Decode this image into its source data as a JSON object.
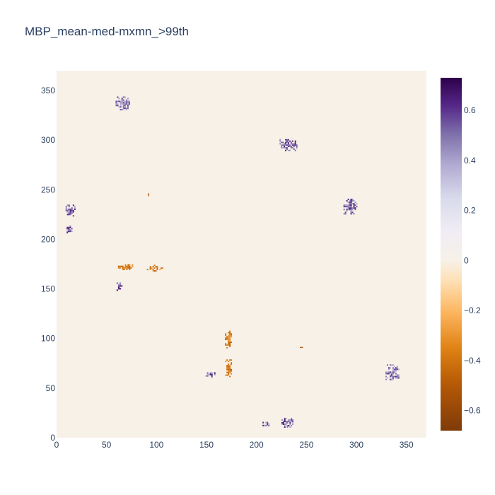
{
  "chart_data": {
    "type": "heatmap",
    "title": "MBP_mean-med-mxmn_>99th",
    "xlabel": "",
    "ylabel": "",
    "xlim": [
      0,
      370
    ],
    "ylim": [
      0,
      370
    ],
    "x_ticks": [
      0,
      50,
      100,
      150,
      200,
      250,
      300,
      350
    ],
    "y_ticks": [
      0,
      50,
      100,
      150,
      200,
      250,
      300,
      350
    ],
    "colorbar": {
      "range": [
        -0.68,
        0.73
      ],
      "ticks": [
        -0.6,
        -0.4,
        -0.2,
        0,
        0.2,
        0.4,
        0.6
      ],
      "colorscale": [
        [
          -0.68,
          "#7f3b08"
        ],
        [
          -0.5,
          "#b35806"
        ],
        [
          -0.35,
          "#e08214"
        ],
        [
          -0.2,
          "#fdb863"
        ],
        [
          -0.08,
          "#fee0b6"
        ],
        [
          0,
          "#f7f1e8"
        ],
        [
          0.12,
          "#f0ecf4"
        ],
        [
          0.25,
          "#d8daeb"
        ],
        [
          0.38,
          "#b2abd2"
        ],
        [
          0.5,
          "#8073ac"
        ],
        [
          0.62,
          "#542788"
        ],
        [
          0.73,
          "#2d004b"
        ]
      ]
    },
    "background_value": 0,
    "clusters": [
      {
        "x": 67,
        "y": 337,
        "w": 16,
        "h": 14,
        "value": 0.62
      },
      {
        "x": 232,
        "y": 295,
        "w": 18,
        "h": 12,
        "value": 0.68
      },
      {
        "x": 294,
        "y": 233,
        "w": 14,
        "h": 16,
        "value": 0.68
      },
      {
        "x": 14,
        "y": 229,
        "w": 10,
        "h": 12,
        "value": 0.68
      },
      {
        "x": 13,
        "y": 210,
        "w": 6,
        "h": 8,
        "value": 0.68
      },
      {
        "x": 69,
        "y": 172,
        "w": 18,
        "h": 6,
        "value": -0.5
      },
      {
        "x": 98,
        "y": 171,
        "w": 18,
        "h": 7,
        "value": -0.5
      },
      {
        "x": 63,
        "y": 153,
        "w": 6,
        "h": 10,
        "value": 0.68
      },
      {
        "x": 172,
        "y": 99,
        "w": 7,
        "h": 18,
        "value": -0.5
      },
      {
        "x": 172,
        "y": 70,
        "w": 7,
        "h": 18,
        "value": -0.5
      },
      {
        "x": 154,
        "y": 63,
        "w": 10,
        "h": 6,
        "value": 0.68
      },
      {
        "x": 336,
        "y": 66,
        "w": 14,
        "h": 16,
        "value": 0.62
      },
      {
        "x": 211,
        "y": 13,
        "w": 10,
        "h": 6,
        "value": 0.68
      },
      {
        "x": 231,
        "y": 15,
        "w": 12,
        "h": 10,
        "value": 0.68
      },
      {
        "x": 92,
        "y": 245,
        "w": 1,
        "h": 3,
        "value": -0.6
      },
      {
        "x": 245,
        "y": 91,
        "w": 3,
        "h": 1,
        "value": -0.6
      }
    ]
  }
}
